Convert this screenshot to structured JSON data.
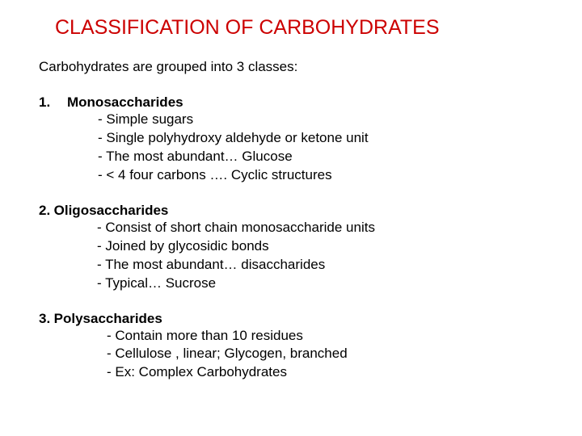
{
  "title": "CLASSIFICATION OF CARBOHYDRATES",
  "intro": "Carbohydrates are grouped into 3 classes:",
  "title_color": "#cc0000",
  "text_color": "#000000",
  "background_color": "#ffffff",
  "font_family": "Arial",
  "title_fontsize": 25,
  "body_fontsize": 17,
  "sections": [
    {
      "number": "1.",
      "name": "Monosaccharides",
      "bullets": [
        "- Simple sugars",
        "- Single polyhydroxy aldehyde or ketone unit",
        "- The most abundant… Glucose",
        "- < 4 four carbons …. Cyclic structures"
      ]
    },
    {
      "number": "2.",
      "name": "Oligosaccharides",
      "bullets": [
        "- Consist of  short chain monosaccharide units",
        "- Joined by glycosidic bonds",
        "- The most abundant… disaccharides",
        "- Typical… Sucrose"
      ]
    },
    {
      "number": "3.",
      "name": "Polysaccharides",
      "bullets": [
        "- Contain more than 10 residues",
        "- Cellulose , linear; Glycogen, branched",
        "- Ex: Complex Carbohydrates"
      ]
    }
  ]
}
